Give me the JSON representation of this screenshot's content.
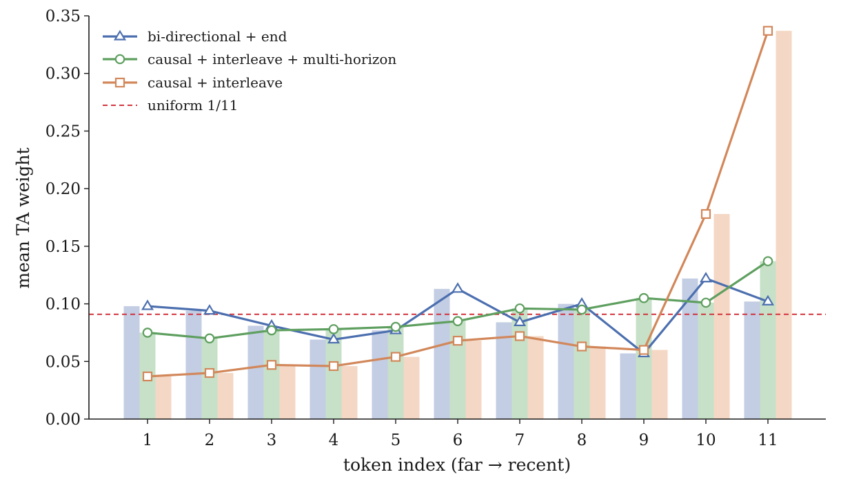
{
  "chart_data": {
    "type": "bar",
    "xlabel": "token index (far → recent)",
    "ylabel": "mean TA weight",
    "categories": [
      "1",
      "2",
      "3",
      "4",
      "5",
      "6",
      "7",
      "8",
      "9",
      "10",
      "11"
    ],
    "ylim": [
      0,
      0.35
    ],
    "yticks": [
      0.0,
      0.05,
      0.1,
      0.15,
      0.2,
      0.25,
      0.3,
      0.35
    ],
    "ytick_labels": [
      "0.00",
      "0.05",
      "0.10",
      "0.15",
      "0.20",
      "0.25",
      "0.30",
      "0.35"
    ],
    "grid": false,
    "legend_position": "top-left",
    "series": [
      {
        "name": "bi-directional + end",
        "marker": "triangle",
        "color": "#4c6faf",
        "bar_color": "#c3cde3",
        "values": [
          0.098,
          0.094,
          0.081,
          0.069,
          0.077,
          0.113,
          0.084,
          0.1,
          0.057,
          0.122,
          0.102
        ]
      },
      {
        "name": "causal + interleave + multi-horizon",
        "marker": "circle",
        "color": "#5e9f5f",
        "bar_color": "#c7e1c8",
        "values": [
          0.075,
          0.07,
          0.077,
          0.078,
          0.08,
          0.085,
          0.096,
          0.095,
          0.105,
          0.101,
          0.137
        ]
      },
      {
        "name": "causal + interleave",
        "marker": "square",
        "color": "#d2875a",
        "bar_color": "#f4d7c4",
        "values": [
          0.037,
          0.04,
          0.047,
          0.046,
          0.054,
          0.068,
          0.072,
          0.063,
          0.06,
          0.178,
          0.337
        ]
      }
    ],
    "reference_line": {
      "name": "uniform 1/11",
      "value": 0.0909,
      "color": "#d2353f"
    }
  }
}
